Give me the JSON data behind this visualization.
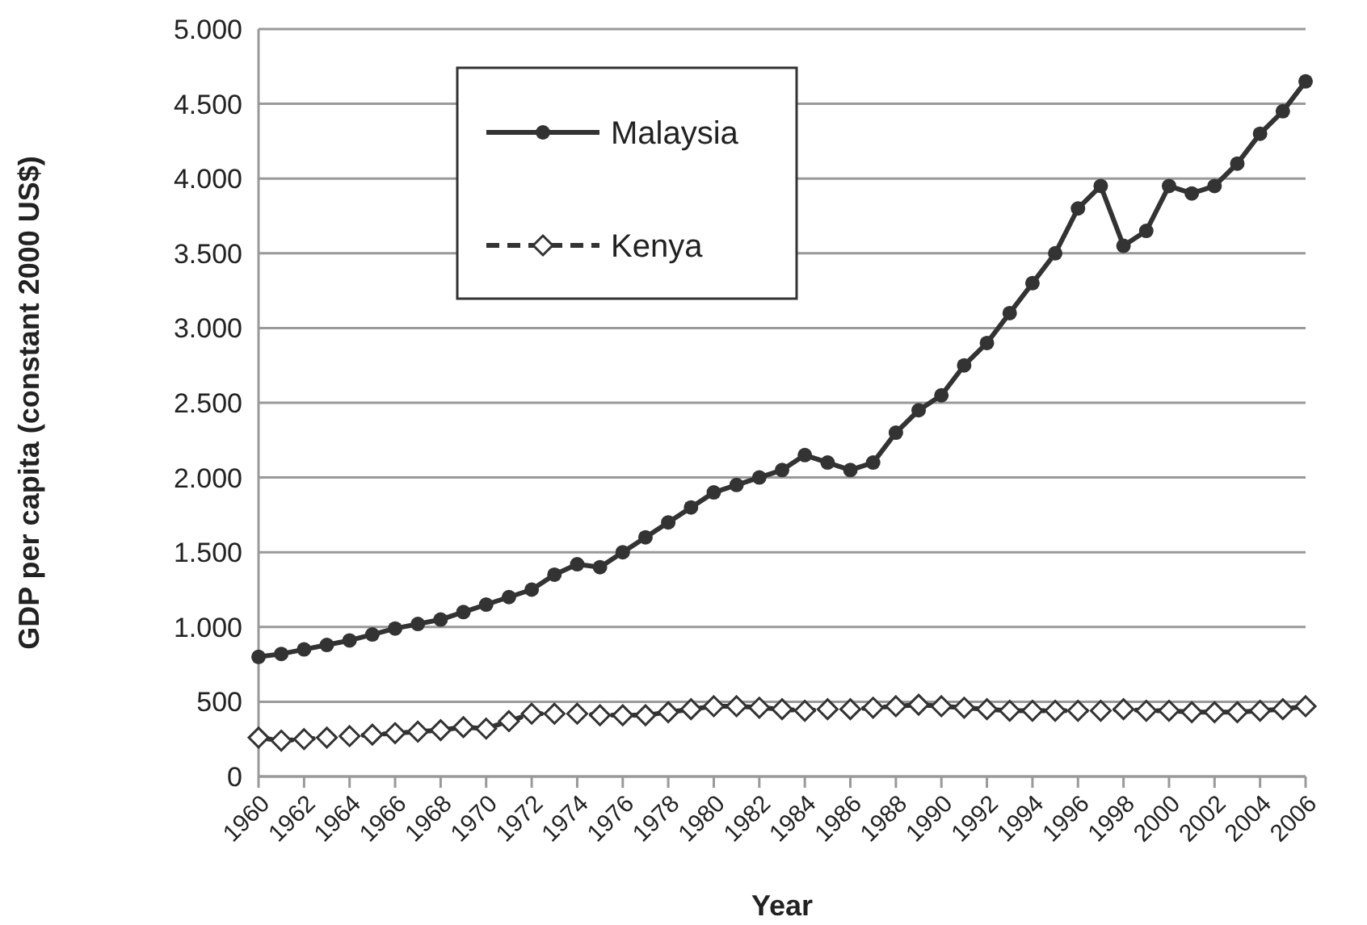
{
  "chart_data": {
    "type": "line",
    "xlabel": "Year",
    "ylabel": "GDP per capita (constant 2000 US$)",
    "x": [
      1960,
      1961,
      1962,
      1963,
      1964,
      1965,
      1966,
      1967,
      1968,
      1969,
      1970,
      1971,
      1972,
      1973,
      1974,
      1975,
      1976,
      1977,
      1978,
      1979,
      1980,
      1981,
      1982,
      1983,
      1984,
      1985,
      1986,
      1987,
      1988,
      1989,
      1990,
      1991,
      1992,
      1993,
      1994,
      1995,
      1996,
      1997,
      1998,
      1999,
      2000,
      2001,
      2002,
      2003,
      2004,
      2005,
      2006
    ],
    "series": [
      {
        "name": "Malaysia",
        "color": "#333333",
        "marker": "circle",
        "line_style": "solid",
        "values": [
          800,
          820,
          850,
          880,
          910,
          950,
          990,
          1020,
          1050,
          1100,
          1150,
          1200,
          1250,
          1350,
          1420,
          1400,
          1500,
          1600,
          1700,
          1800,
          1900,
          1950,
          2000,
          2050,
          2150,
          2100,
          2050,
          2100,
          2300,
          2450,
          2550,
          2750,
          2900,
          3100,
          3300,
          3500,
          3800,
          3950,
          3550,
          3650,
          3950,
          3900,
          3950,
          4100,
          4300,
          4450,
          4650
        ]
      },
      {
        "name": "Kenya",
        "color": "#333333",
        "marker": "diamond",
        "line_style": "dashed",
        "values": [
          260,
          240,
          250,
          260,
          270,
          280,
          290,
          300,
          310,
          330,
          320,
          370,
          420,
          420,
          420,
          410,
          410,
          410,
          430,
          450,
          470,
          470,
          460,
          450,
          440,
          450,
          450,
          460,
          470,
          480,
          470,
          460,
          450,
          440,
          440,
          440,
          440,
          440,
          450,
          440,
          440,
          430,
          430,
          430,
          440,
          450,
          470
        ]
      }
    ],
    "xlim": [
      1960,
      2006
    ],
    "xticks": [
      1960,
      1962,
      1964,
      1966,
      1968,
      1970,
      1972,
      1974,
      1976,
      1978,
      1980,
      1982,
      1984,
      1986,
      1988,
      1990,
      1992,
      1994,
      1996,
      1998,
      2000,
      2002,
      2004,
      2006
    ],
    "ylim": [
      0,
      5000
    ],
    "yticks": [
      0,
      500,
      {
        "value": 1000,
        "label": "1.000"
      },
      {
        "value": 1500,
        "label": "1.500"
      },
      {
        "value": 2000,
        "label": "2.000"
      },
      {
        "value": 2500,
        "label": "2.500"
      },
      {
        "value": 3000,
        "label": "3.000"
      },
      {
        "value": 3500,
        "label": "3.500"
      },
      {
        "value": 4000,
        "label": "4.000"
      },
      {
        "value": 4500,
        "label": "4.500"
      },
      {
        "value": 5000,
        "label": "5.000"
      }
    ],
    "grid": "y",
    "legend": "top left"
  }
}
